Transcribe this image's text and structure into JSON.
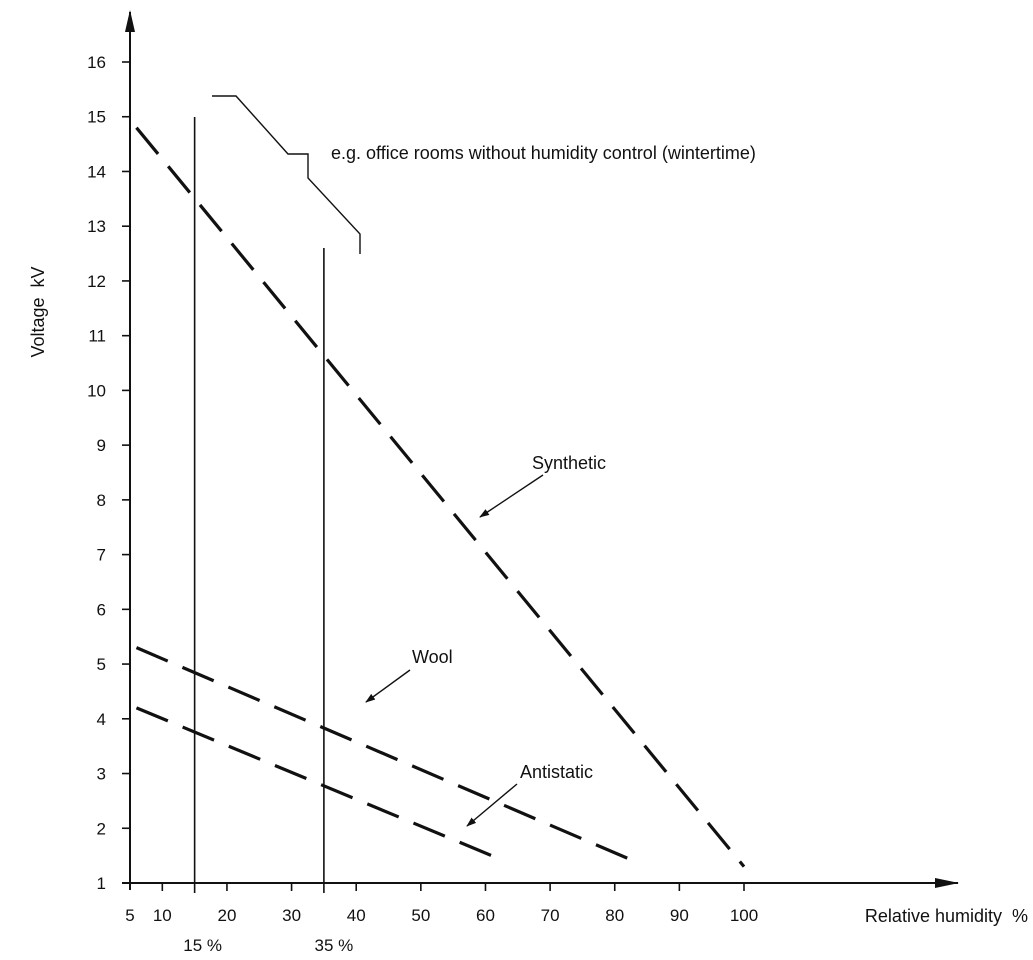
{
  "chart_data": {
    "type": "line",
    "xlabel": "Relative humidity  %",
    "ylabel": "Voltage  kV",
    "xlim": [
      5,
      100
    ],
    "ylim": [
      1,
      16
    ],
    "x_ticks": [
      5,
      10,
      20,
      30,
      40,
      50,
      60,
      70,
      80,
      90,
      100
    ],
    "y_ticks": [
      1,
      2,
      3,
      4,
      5,
      6,
      7,
      8,
      9,
      10,
      11,
      12,
      13,
      14,
      15,
      16
    ],
    "series": [
      {
        "name": "Synthetic",
        "x": [
          6,
          100
        ],
        "y": [
          14.8,
          1.3
        ]
      },
      {
        "name": "Wool",
        "x": [
          6,
          83
        ],
        "y": [
          5.3,
          1.4
        ]
      },
      {
        "name": "Antistatic",
        "x": [
          6,
          63
        ],
        "y": [
          4.2,
          1.4
        ]
      }
    ],
    "reference_lines": [
      {
        "x": 15,
        "label": "15 %"
      },
      {
        "x": 35,
        "label": "35 %"
      }
    ],
    "annotation": "e.g. office rooms without humidity control (wintertime)"
  }
}
